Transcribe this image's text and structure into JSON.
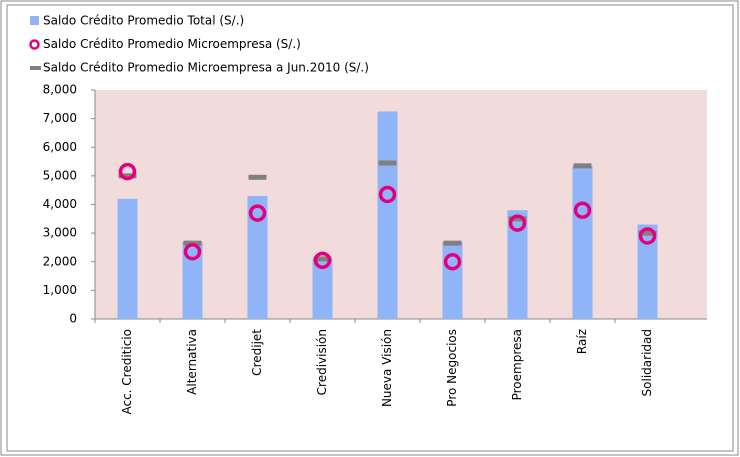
{
  "chart_data": {
    "type": "bar",
    "categories": [
      "Acc. Crediticio",
      "Alternativa",
      "Credijet",
      "Credivisión",
      "Nueva Visión",
      "Pro Negocios",
      "Proempresa",
      "Raíz",
      "Solidaridad"
    ],
    "series": [
      {
        "name": "Saldo Crédito Promedio Total (S/.)",
        "color": "#8fb4f8",
        "marker": "bar",
        "values": [
          4200,
          2700,
          4300,
          2100,
          7250,
          2700,
          3800,
          5350,
          3300
        ]
      },
      {
        "name": "Saldo Crédito Promedio Microempresa (S/.)",
        "color": "#e4007c",
        "marker": "circle",
        "values": [
          5150,
          2350,
          3700,
          2050,
          4350,
          2000,
          3350,
          3800,
          2900
        ]
      },
      {
        "name": "Saldo Crédito Promedio Microempresa a Jun.2010 (S/.)",
        "color": "#808080",
        "marker": "dash",
        "values": [
          5000,
          2650,
          4950,
          2100,
          5450,
          2650,
          3500,
          5350,
          3000
        ]
      }
    ],
    "ylim": [
      0,
      8000
    ],
    "yticks": [
      0,
      {
        "value": 1000,
        "label": "1,000"
      },
      {
        "value": 2000,
        "label": "2,000"
      },
      {
        "value": 3000,
        "label": "3,000"
      },
      {
        "value": 4000,
        "label": "4,000"
      },
      {
        "value": 5000,
        "label": "5,000"
      },
      {
        "value": 6000,
        "label": "6,000"
      },
      {
        "value": 7000,
        "label": "7,000"
      },
      {
        "value": 8000,
        "label": "8,000"
      }
    ],
    "plot_background": "#f2dcdb"
  }
}
